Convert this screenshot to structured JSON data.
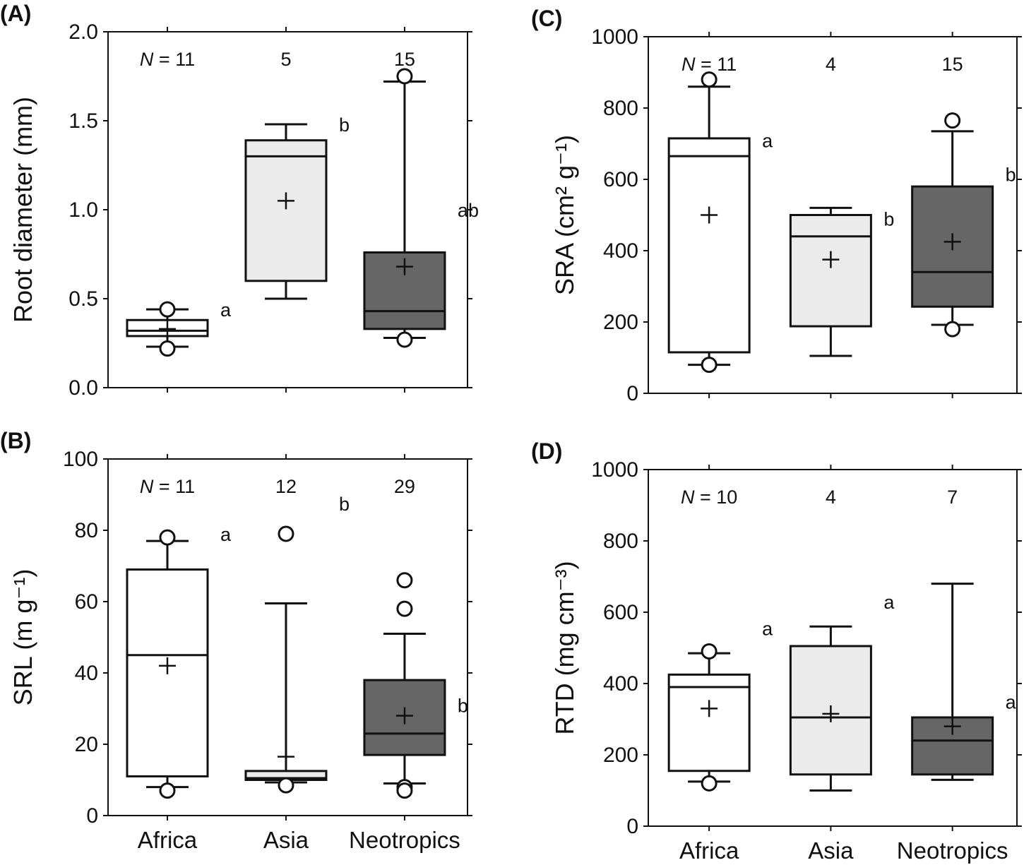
{
  "chart_data": [
    {
      "type": "box",
      "panel": "(A)",
      "ylabel": "Root diameter (mm)",
      "ylim": [
        0,
        2.0
      ],
      "yticks": [
        "0.0",
        "0.5",
        "1.0",
        "1.5",
        "2.0"
      ],
      "categories": [
        "Africa",
        "Asia",
        "Neotropics"
      ],
      "show_categories": false,
      "n_labels": [
        "N = 11",
        "5",
        "15"
      ],
      "letters": [
        "a",
        "b",
        "ab"
      ],
      "boxes": [
        {
          "whisker_low": 0.23,
          "q1": 0.29,
          "median": 0.32,
          "q3": 0.38,
          "whisker_high": 0.44,
          "mean": 0.33,
          "outliers": [
            0.44,
            0.22
          ],
          "fill": "#ffffff"
        },
        {
          "whisker_low": 0.5,
          "q1": 0.6,
          "median": 1.3,
          "q3": 1.39,
          "whisker_high": 1.48,
          "mean": 1.05,
          "outliers": [],
          "fill": "#ebebeb"
        },
        {
          "whisker_low": 0.28,
          "q1": 0.33,
          "median": 0.43,
          "q3": 0.76,
          "whisker_high": 1.72,
          "mean": 0.68,
          "outliers": [
            1.75,
            0.27
          ],
          "fill": "#666666"
        }
      ]
    },
    {
      "type": "box",
      "panel": "(B)",
      "ylabel": "SRL (m g⁻¹)",
      "ylim": [
        0,
        100
      ],
      "yticks": [
        "0",
        "20",
        "40",
        "60",
        "80",
        "100"
      ],
      "categories": [
        "Africa",
        "Asia",
        "Neotropics"
      ],
      "show_categories": true,
      "n_labels": [
        "N = 11",
        "12",
        "29"
      ],
      "letters": [
        "a",
        "b",
        "b"
      ],
      "boxes": [
        {
          "whisker_low": 8,
          "q1": 11,
          "median": 45,
          "q3": 69,
          "whisker_high": 77,
          "mean": 42,
          "outliers": [
            78,
            7
          ],
          "fill": "#ffffff"
        },
        {
          "whisker_low": 9.3,
          "q1": 10,
          "median": 10.5,
          "q3": 12.5,
          "whisker_high": 59.5,
          "mean": 16.5,
          "outliers": [
            79,
            8.5
          ],
          "fill": "#ebebeb"
        },
        {
          "whisker_low": 9,
          "q1": 17,
          "median": 23,
          "q3": 38,
          "whisker_high": 51,
          "mean": 28,
          "outliers": [
            66,
            58,
            8,
            7
          ],
          "fill": "#666666"
        }
      ]
    },
    {
      "type": "box",
      "panel": "(C)",
      "ylabel": "SRA (cm² g⁻¹)",
      "ylim": [
        0,
        1000
      ],
      "yticks": [
        "0",
        "200",
        "400",
        "600",
        "800",
        "1000"
      ],
      "categories": [
        "Africa",
        "Asia",
        "Neotropics"
      ],
      "show_categories": false,
      "n_labels": [
        "N = 11",
        "4",
        "15"
      ],
      "letters": [
        "a",
        "b",
        "b"
      ],
      "boxes": [
        {
          "whisker_low": 80,
          "q1": 115,
          "median": 665,
          "q3": 715,
          "whisker_high": 860,
          "mean": 500,
          "outliers": [
            880,
            80
          ],
          "fill": "#ffffff"
        },
        {
          "whisker_low": 105,
          "q1": 188,
          "median": 440,
          "q3": 500,
          "whisker_high": 520,
          "mean": 375,
          "outliers": [],
          "fill": "#ebebeb"
        },
        {
          "whisker_low": 192,
          "q1": 243,
          "median": 340,
          "q3": 580,
          "whisker_high": 735,
          "mean": 425,
          "outliers": [
            765,
            180
          ],
          "fill": "#666666"
        }
      ]
    },
    {
      "type": "box",
      "panel": "(D)",
      "ylabel": "RTD (mg cm⁻³)",
      "ylim": [
        0,
        1000
      ],
      "yticks": [
        "0",
        "200",
        "400",
        "600",
        "800",
        "1000"
      ],
      "categories": [
        "Africa",
        "Asia",
        "Neotropics"
      ],
      "show_categories": true,
      "n_labels": [
        "N = 10",
        "4",
        "7"
      ],
      "letters": [
        "a",
        "a",
        "a"
      ],
      "boxes": [
        {
          "whisker_low": 125,
          "q1": 155,
          "median": 390,
          "q3": 425,
          "whisker_high": 485,
          "mean": 330,
          "outliers": [
            490,
            120
          ],
          "fill": "#ffffff"
        },
        {
          "whisker_low": 100,
          "q1": 145,
          "median": 305,
          "q3": 505,
          "whisker_high": 560,
          "mean": 315,
          "outliers": [],
          "fill": "#ebebeb"
        },
        {
          "whisker_low": 130,
          "q1": 145,
          "median": 240,
          "q3": 305,
          "whisker_high": 680,
          "mean": 280,
          "outliers": [],
          "fill": "#666666"
        }
      ]
    }
  ]
}
